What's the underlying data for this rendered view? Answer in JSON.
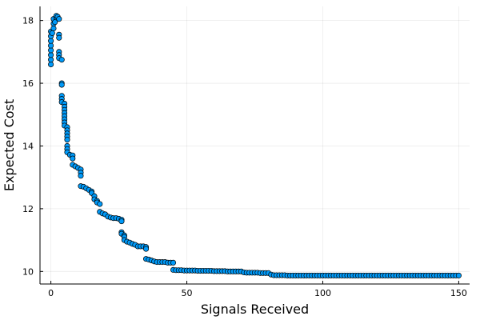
{
  "chart_data": {
    "type": "scatter",
    "title": "",
    "xlabel": "Signals Received",
    "ylabel": "Expected Cost",
    "xlim": [
      -4,
      154
    ],
    "ylim": [
      9.6,
      18.45
    ],
    "xticks": [
      0,
      50,
      100,
      150
    ],
    "yticks": [
      10,
      12,
      14,
      16,
      18
    ],
    "grid": true,
    "legend": false,
    "marker_color": "#009af9",
    "marker_edge_color": "#000000",
    "points": [
      [
        0,
        16.6
      ],
      [
        0,
        16.75
      ],
      [
        0,
        16.9
      ],
      [
        0,
        17.05
      ],
      [
        0,
        17.2
      ],
      [
        0,
        17.35
      ],
      [
        0,
        17.5
      ],
      [
        0,
        17.65
      ],
      [
        0.5,
        17.6
      ],
      [
        1,
        17.75
      ],
      [
        1,
        17.9
      ],
      [
        1,
        18.05
      ],
      [
        1.5,
        17.95
      ],
      [
        2,
        18.1
      ],
      [
        2,
        18.15
      ],
      [
        2.5,
        18.12
      ],
      [
        3,
        18.05
      ],
      [
        3,
        17.55
      ],
      [
        3,
        17.45
      ],
      [
        3,
        17.0
      ],
      [
        3,
        16.9
      ],
      [
        3,
        16.8
      ],
      [
        4,
        16.75
      ],
      [
        4,
        16.0
      ],
      [
        4,
        15.95
      ],
      [
        4,
        15.6
      ],
      [
        4,
        15.5
      ],
      [
        4,
        15.4
      ],
      [
        5,
        15.35
      ],
      [
        5,
        15.25
      ],
      [
        5,
        15.15
      ],
      [
        5,
        15.05
      ],
      [
        5,
        14.95
      ],
      [
        5,
        14.85
      ],
      [
        5,
        14.75
      ],
      [
        5,
        14.65
      ],
      [
        6,
        14.6
      ],
      [
        6,
        14.5
      ],
      [
        6,
        14.4
      ],
      [
        6,
        14.3
      ],
      [
        6,
        14.2
      ],
      [
        6,
        14.0
      ],
      [
        6,
        13.9
      ],
      [
        6,
        13.8
      ],
      [
        7,
        13.72
      ],
      [
        8,
        13.7
      ],
      [
        8,
        13.6
      ],
      [
        8,
        13.4
      ],
      [
        9,
        13.35
      ],
      [
        10,
        13.3
      ],
      [
        11,
        13.25
      ],
      [
        11,
        13.15
      ],
      [
        11,
        13.05
      ],
      [
        11,
        12.72
      ],
      [
        12,
        12.7
      ],
      [
        13,
        12.65
      ],
      [
        14,
        12.6
      ],
      [
        15,
        12.55
      ],
      [
        15,
        12.5
      ],
      [
        16,
        12.4
      ],
      [
        16,
        12.3
      ],
      [
        17,
        12.25
      ],
      [
        17,
        12.2
      ],
      [
        18,
        12.15
      ],
      [
        18,
        11.9
      ],
      [
        19,
        11.85
      ],
      [
        20,
        11.82
      ],
      [
        21,
        11.75
      ],
      [
        22,
        11.72
      ],
      [
        23,
        11.7
      ],
      [
        24,
        11.7
      ],
      [
        25,
        11.68
      ],
      [
        26,
        11.65
      ],
      [
        26,
        11.6
      ],
      [
        26,
        11.25
      ],
      [
        26,
        11.2
      ],
      [
        27,
        11.15
      ],
      [
        27,
        11.1
      ],
      [
        27,
        11.0
      ],
      [
        28,
        10.95
      ],
      [
        29,
        10.92
      ],
      [
        30,
        10.88
      ],
      [
        31,
        10.85
      ],
      [
        32,
        10.8
      ],
      [
        33,
        10.8
      ],
      [
        34,
        10.8
      ],
      [
        35,
        10.78
      ],
      [
        35,
        10.72
      ],
      [
        35,
        10.4
      ],
      [
        36,
        10.38
      ],
      [
        37,
        10.35
      ],
      [
        38,
        10.32
      ],
      [
        39,
        10.3
      ],
      [
        40,
        10.3
      ],
      [
        41,
        10.3
      ],
      [
        42,
        10.3
      ],
      [
        43,
        10.28
      ],
      [
        44,
        10.28
      ],
      [
        45,
        10.28
      ],
      [
        45,
        10.05
      ],
      [
        46,
        10.04
      ],
      [
        47,
        10.04
      ],
      [
        48,
        10.04
      ],
      [
        49,
        10.03
      ],
      [
        50,
        10.03
      ],
      [
        51,
        10.03
      ],
      [
        52,
        10.03
      ],
      [
        53,
        10.03
      ],
      [
        54,
        10.02
      ],
      [
        55,
        10.02
      ],
      [
        56,
        10.02
      ],
      [
        57,
        10.02
      ],
      [
        58,
        10.02
      ],
      [
        59,
        10.02
      ],
      [
        60,
        10.01
      ],
      [
        61,
        10.01
      ],
      [
        62,
        10.01
      ],
      [
        63,
        10.01
      ],
      [
        64,
        10.01
      ],
      [
        65,
        10.0
      ],
      [
        66,
        10.0
      ],
      [
        67,
        10.0
      ],
      [
        68,
        10.0
      ],
      [
        69,
        10.0
      ],
      [
        70,
        10.0
      ],
      [
        71,
        9.97
      ],
      [
        72,
        9.96
      ],
      [
        73,
        9.96
      ],
      [
        74,
        9.96
      ],
      [
        75,
        9.96
      ],
      [
        76,
        9.96
      ],
      [
        77,
        9.95
      ],
      [
        78,
        9.95
      ],
      [
        79,
        9.95
      ],
      [
        80,
        9.95
      ],
      [
        81,
        9.9
      ],
      [
        82,
        9.88
      ],
      [
        83,
        9.88
      ],
      [
        84,
        9.88
      ],
      [
        85,
        9.88
      ],
      [
        86,
        9.88
      ],
      [
        87,
        9.87
      ],
      [
        88,
        9.87
      ],
      [
        89,
        9.87
      ],
      [
        90,
        9.87
      ],
      [
        91,
        9.87
      ],
      [
        92,
        9.87
      ],
      [
        93,
        9.87
      ],
      [
        94,
        9.87
      ],
      [
        95,
        9.87
      ],
      [
        96,
        9.87
      ],
      [
        97,
        9.87
      ],
      [
        98,
        9.87
      ],
      [
        99,
        9.87
      ],
      [
        100,
        9.87
      ],
      [
        101,
        9.87
      ],
      [
        102,
        9.87
      ],
      [
        103,
        9.87
      ],
      [
        104,
        9.87
      ],
      [
        105,
        9.87
      ],
      [
        106,
        9.87
      ],
      [
        107,
        9.87
      ],
      [
        108,
        9.87
      ],
      [
        109,
        9.87
      ],
      [
        110,
        9.87
      ],
      [
        111,
        9.87
      ],
      [
        112,
        9.87
      ],
      [
        113,
        9.87
      ],
      [
        114,
        9.87
      ],
      [
        115,
        9.87
      ],
      [
        116,
        9.87
      ],
      [
        117,
        9.87
      ],
      [
        118,
        9.87
      ],
      [
        119,
        9.87
      ],
      [
        120,
        9.87
      ],
      [
        121,
        9.87
      ],
      [
        122,
        9.87
      ],
      [
        123,
        9.87
      ],
      [
        124,
        9.87
      ],
      [
        125,
        9.87
      ],
      [
        126,
        9.87
      ],
      [
        127,
        9.87
      ],
      [
        128,
        9.87
      ],
      [
        129,
        9.87
      ],
      [
        130,
        9.87
      ],
      [
        131,
        9.87
      ],
      [
        132,
        9.87
      ],
      [
        133,
        9.87
      ],
      [
        134,
        9.87
      ],
      [
        135,
        9.87
      ],
      [
        136,
        9.87
      ],
      [
        137,
        9.87
      ],
      [
        138,
        9.87
      ],
      [
        139,
        9.87
      ],
      [
        140,
        9.87
      ],
      [
        141,
        9.87
      ],
      [
        142,
        9.87
      ],
      [
        143,
        9.87
      ],
      [
        144,
        9.87
      ],
      [
        145,
        9.87
      ],
      [
        146,
        9.87
      ],
      [
        147,
        9.87
      ],
      [
        148,
        9.87
      ],
      [
        149,
        9.87
      ],
      [
        150,
        9.87
      ]
    ]
  }
}
